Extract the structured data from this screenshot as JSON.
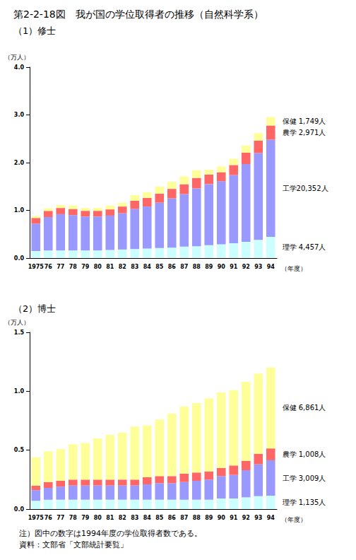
{
  "title": "第2-2-18図　我が国の学位取得者の推移（自然科学系）",
  "notes": [
    "注）図中の数字は1994年度の学位取得者数である。",
    "資料：文部省「文部統計要覧」"
  ],
  "chart_data": [
    {
      "type": "bar",
      "title": "（1）修士",
      "stacked": true,
      "grid": false,
      "y_label": "（万人）",
      "x_label": "（年度）",
      "categories": [
        "1975",
        "76",
        "77",
        "78",
        "79",
        "80",
        "81",
        "82",
        "83",
        "84",
        "85",
        "86",
        "87",
        "88",
        "89",
        "90",
        "91",
        "92",
        "93",
        "94"
      ],
      "ylim": [
        0,
        4
      ],
      "yticks": [
        {
          "value": 0,
          "label": "0.0"
        },
        {
          "value": 1,
          "label": "1.0"
        },
        {
          "value": 2,
          "label": "2.0"
        },
        {
          "value": 3,
          "label": "3.0"
        },
        {
          "value": 4,
          "label": "4.0"
        }
      ],
      "series": [
        {
          "name": "理学",
          "color": "#ccffff",
          "values": [
            0.15,
            0.16,
            0.16,
            0.16,
            0.16,
            0.16,
            0.17,
            0.18,
            0.19,
            0.2,
            0.21,
            0.22,
            0.24,
            0.25,
            0.27,
            0.29,
            0.31,
            0.34,
            0.38,
            0.4457
          ]
        },
        {
          "name": "工学",
          "color": "#9999ff",
          "values": [
            0.57,
            0.7,
            0.76,
            0.74,
            0.71,
            0.71,
            0.72,
            0.76,
            0.84,
            0.88,
            0.95,
            1.03,
            1.1,
            1.21,
            1.28,
            1.32,
            1.43,
            1.63,
            1.82,
            2.0352
          ]
        },
        {
          "name": "農学",
          "color": "#ff6666",
          "values": [
            0.12,
            0.13,
            0.13,
            0.13,
            0.12,
            0.12,
            0.13,
            0.14,
            0.17,
            0.18,
            0.19,
            0.2,
            0.21,
            0.22,
            0.2,
            0.19,
            0.21,
            0.24,
            0.26,
            0.2971
          ]
        },
        {
          "name": "保健",
          "color": "#ffff99",
          "values": [
            0.04,
            0.05,
            0.06,
            0.07,
            0.06,
            0.06,
            0.08,
            0.08,
            0.12,
            0.12,
            0.15,
            0.15,
            0.16,
            0.16,
            0.1,
            0.12,
            0.13,
            0.15,
            0.16,
            0.1749
          ]
        }
      ],
      "annotations": [
        {
          "text": "保健 1,749人",
          "series": "保健",
          "category": "94"
        },
        {
          "text": "農学 2,971人",
          "series": "農学",
          "category": "94"
        },
        {
          "text": "工学20,352人",
          "series": "工学",
          "category": "94"
        },
        {
          "text": "理学 4,457人",
          "series": "理学",
          "category": "94"
        }
      ]
    },
    {
      "type": "bar",
      "title": "（2）博士",
      "stacked": true,
      "grid": false,
      "y_label": "（万人）",
      "x_label": "（年度）",
      "categories": [
        "1975",
        "76",
        "77",
        "78",
        "79",
        "80",
        "81",
        "82",
        "83",
        "84",
        "85",
        "86",
        "87",
        "88",
        "89",
        "90",
        "91",
        "92",
        "93",
        "94"
      ],
      "ylim": [
        0,
        1.5
      ],
      "yticks": [
        {
          "value": 0,
          "label": "0.0"
        },
        {
          "value": 0.5,
          "label": "0.5"
        },
        {
          "value": 1,
          "label": "1.0"
        },
        {
          "value": 1.5,
          "label": "1.5"
        }
      ],
      "series": [
        {
          "name": "理学",
          "color": "#ccffff",
          "values": [
            0.07,
            0.08,
            0.08,
            0.08,
            0.08,
            0.08,
            0.08,
            0.08,
            0.08,
            0.08,
            0.08,
            0.08,
            0.08,
            0.08,
            0.08,
            0.09,
            0.09,
            0.1,
            0.11,
            0.1135
          ]
        },
        {
          "name": "工学",
          "color": "#9999ff",
          "values": [
            0.09,
            0.1,
            0.11,
            0.12,
            0.12,
            0.12,
            0.12,
            0.12,
            0.12,
            0.13,
            0.14,
            0.14,
            0.15,
            0.16,
            0.17,
            0.19,
            0.2,
            0.23,
            0.27,
            0.3009
          ]
        },
        {
          "name": "農学",
          "color": "#ff6666",
          "values": [
            0.04,
            0.05,
            0.05,
            0.05,
            0.05,
            0.05,
            0.05,
            0.05,
            0.05,
            0.06,
            0.06,
            0.06,
            0.07,
            0.07,
            0.07,
            0.07,
            0.08,
            0.08,
            0.09,
            0.1008
          ]
        },
        {
          "name": "保健",
          "color": "#ffff99",
          "values": [
            0.24,
            0.26,
            0.27,
            0.3,
            0.31,
            0.35,
            0.38,
            0.4,
            0.45,
            0.44,
            0.48,
            0.53,
            0.57,
            0.59,
            0.62,
            0.64,
            0.64,
            0.67,
            0.68,
            0.6861
          ]
        }
      ],
      "annotations": [
        {
          "text": "保健 6,861人",
          "series": "保健",
          "category": "94"
        },
        {
          "text": "農学 1,008人",
          "series": "農学",
          "category": "94"
        },
        {
          "text": "工学 3,009人",
          "series": "工学",
          "category": "94"
        },
        {
          "text": "理学 1,135人",
          "series": "理学",
          "category": "94"
        }
      ]
    }
  ]
}
